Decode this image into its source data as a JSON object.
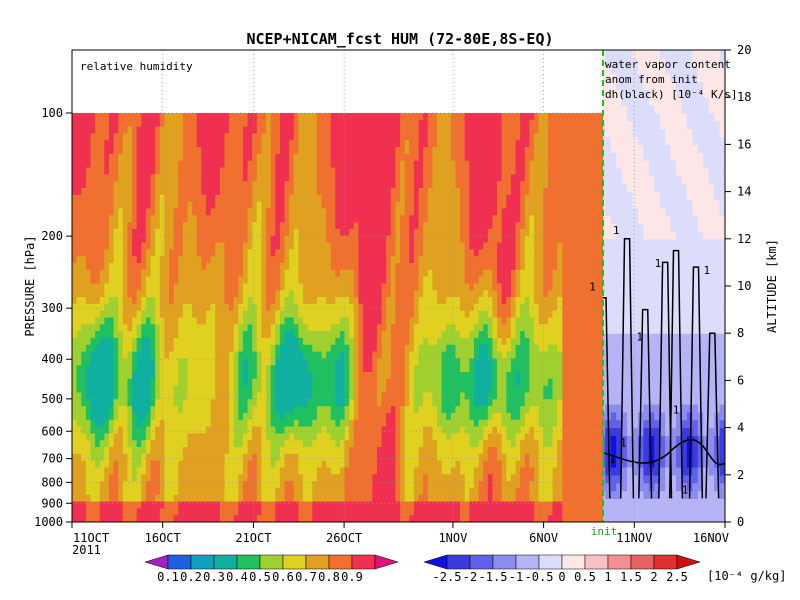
{
  "chart_data": {
    "type": "heatmap",
    "title": "NCEP+NICAM_fcst HUM (72-80E,8S-EQ)",
    "left_panel_label": "relative humidity",
    "right_panel_label_lines": [
      "water vapor content",
      "anom from init",
      "dh(black) [10⁻⁴ K/s]"
    ],
    "init_label": "init",
    "ylabel_left": "PRESSURE [hPa]",
    "ylabel_right": "ALTITUDE [km]",
    "pressure_ticks": [
      "100",
      "200",
      "300",
      "400",
      "500",
      "600",
      "700",
      "800",
      "900",
      "1000"
    ],
    "pressure_values": [
      100,
      200,
      300,
      400,
      500,
      600,
      700,
      800,
      900,
      1000
    ],
    "altitude_ticks": [
      "0",
      "2",
      "4",
      "6",
      "8",
      "10",
      "12",
      "14",
      "16",
      "18",
      "20"
    ],
    "altitude_values": [
      0,
      2,
      4,
      6,
      8,
      10,
      12,
      14,
      16,
      18,
      20
    ],
    "x_ticks": [
      "11OCT",
      "16OCT",
      "21OCT",
      "26OCT",
      "1NOV",
      "6NOV",
      "11NOV",
      "16NOV"
    ],
    "x_year": "2011",
    "x_range_days": [
      0,
      36
    ],
    "init_day": 27,
    "rh_levels": [
      "0.1",
      "0.2",
      "0.3",
      "0.4",
      "0.5",
      "0.6",
      "0.7",
      "0.8",
      "0.9"
    ],
    "rh_colors": [
      "#a020c0",
      "#2060e0",
      "#10a0c0",
      "#10b0a0",
      "#20c060",
      "#a0d030",
      "#e0d020",
      "#e0a020",
      "#f07030",
      "#f03050",
      "#e0107a"
    ],
    "anom_levels": [
      "-2.5",
      "-2",
      "-1.5",
      "-1",
      "-0.5",
      "0",
      "0.5",
      "1",
      "1.5",
      "2",
      "2.5"
    ],
    "anom_units": "[10⁻⁴ g/kg]",
    "anom_colors": [
      "#1010e0",
      "#3a3ae0",
      "#6060e8",
      "#8c8cf0",
      "#b4b4f6",
      "#dcdcfb",
      "#fde6e6",
      "#f8c0c0",
      "#f09090",
      "#e86060",
      "#e03030",
      "#d01010"
    ],
    "contour_labels": [
      "1",
      "1",
      "1",
      "1",
      "1",
      "1",
      "1",
      "1",
      "1"
    ],
    "grid": true
  }
}
